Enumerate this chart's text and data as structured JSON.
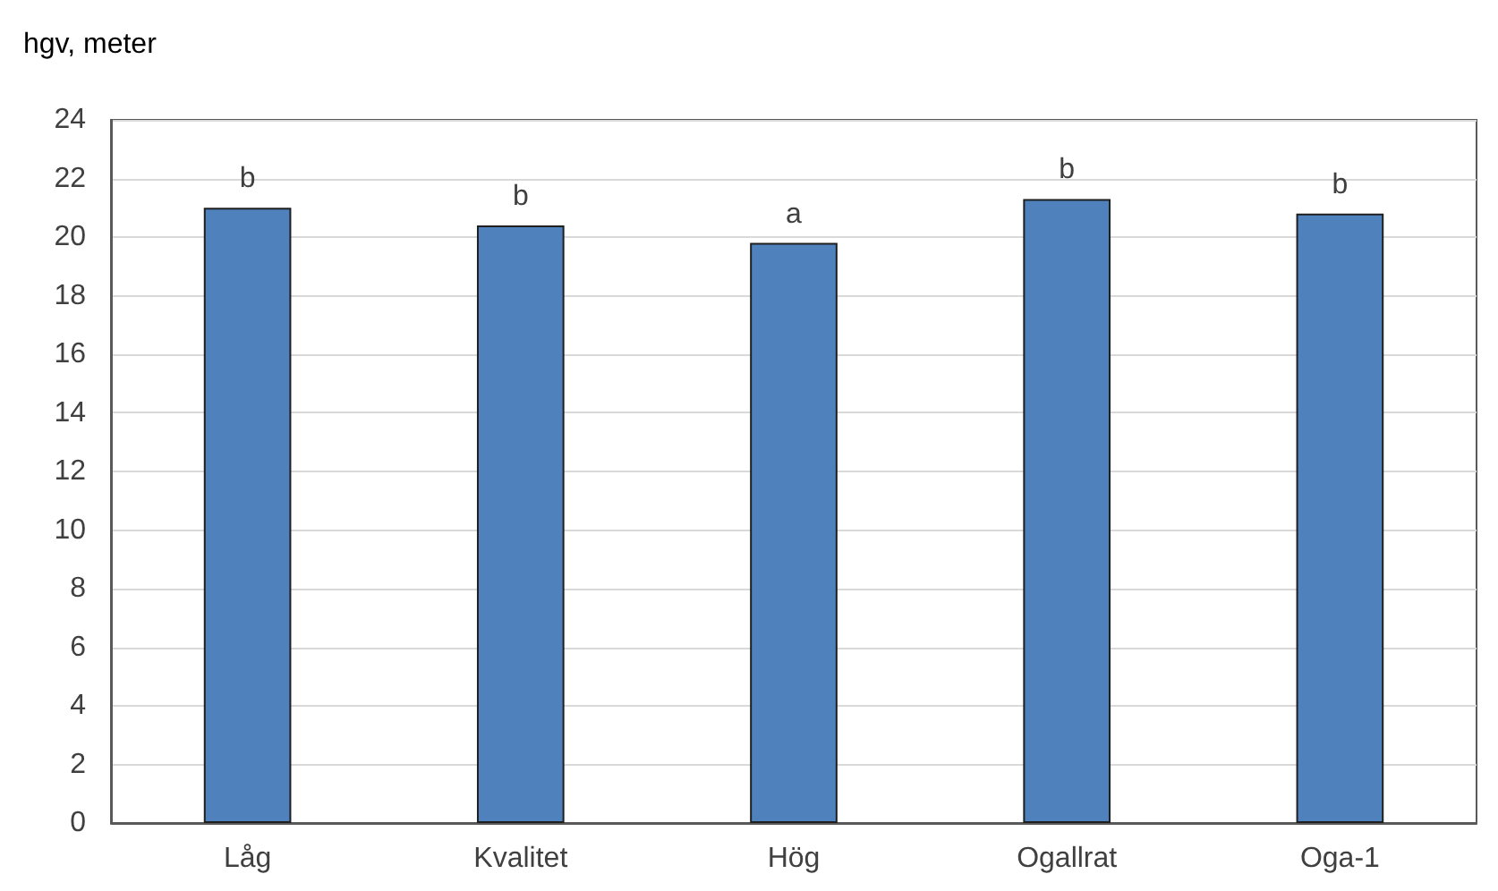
{
  "chart_data": {
    "type": "bar",
    "ylabel": "hgv, meter",
    "categories": [
      "Låg",
      "Kvalitet",
      "Hög",
      "Ogallrat",
      "Oga-1"
    ],
    "values": [
      21.0,
      20.4,
      19.8,
      21.3,
      20.8
    ],
    "color": "#4f81bd",
    "ylim": [
      0,
      24
    ],
    "yticks": [
      0,
      2,
      4,
      6,
      8,
      10,
      12,
      14,
      16,
      18,
      20,
      22,
      24
    ],
    "grid": "y",
    "annotations": [
      {
        "text": "b",
        "x": "Låg",
        "y": 21.0
      },
      {
        "text": "b",
        "x": "Kvalitet",
        "y": 20.4
      },
      {
        "text": "a",
        "x": "Hög",
        "y": 19.8
      },
      {
        "text": "b",
        "x": "Ogallrat",
        "y": 21.3
      },
      {
        "text": "b",
        "x": "Oga-1",
        "y": 20.8
      }
    ]
  }
}
